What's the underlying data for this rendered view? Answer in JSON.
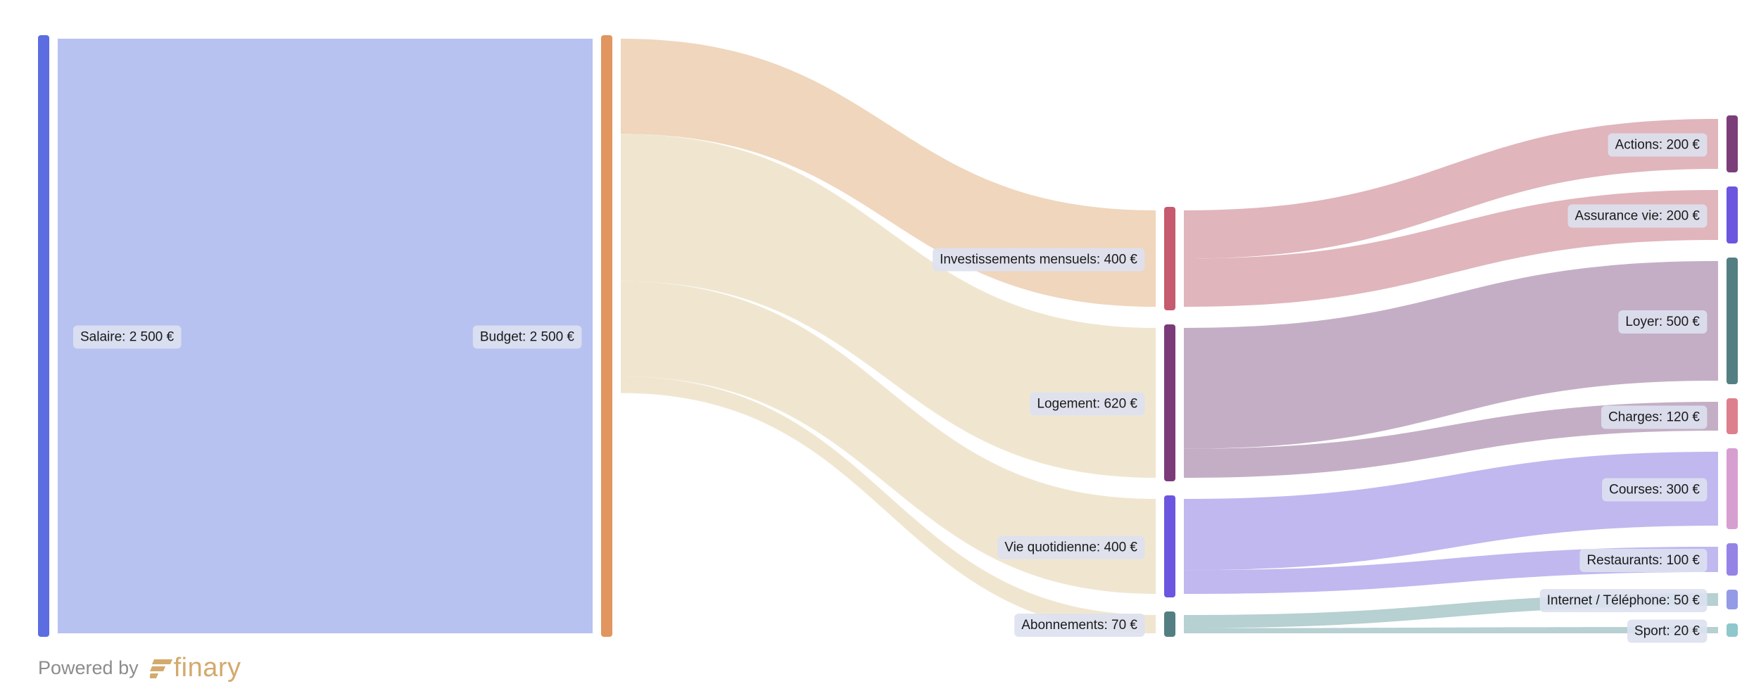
{
  "colors": {
    "salaire": "#5b6de0",
    "budget": "#e0965e",
    "invest": "#c65a6e",
    "logement": "#7b3b78",
    "quotidien": "#6c56df",
    "abonnements": "#537f82",
    "actions": "#7c3e79",
    "assurance": "#6c56df",
    "loyer": "#537f82",
    "charges": "#dd7f8d",
    "courses": "#d79ed0",
    "restaurants": "#9683e6",
    "internet": "#939ae6",
    "sport": "#8ec7cc",
    "link_salaire": "#b8c2f0",
    "link_invest_from_budget": "#efd6bc",
    "link_budget_other": "#f0e6d0",
    "link_invest": "#e0b5bb",
    "link_logement": "#c4aec5",
    "link_quotidien": "#c0b8ef",
    "link_abonnements": "#b7d0d2",
    "label_bg": "#dde1f0",
    "brand": "#d3aa6d"
  },
  "chart_data": {
    "type": "sankey",
    "unit": "€",
    "nodes": [
      {
        "id": "salaire",
        "label": "Salaire: 2 500 €",
        "value": 2500
      },
      {
        "id": "budget",
        "label": "Budget: 2 500 €",
        "value": 2500
      },
      {
        "id": "invest",
        "label": "Investissements mensuels: 400 €",
        "value": 400
      },
      {
        "id": "logement",
        "label": "Logement: 620 €",
        "value": 620
      },
      {
        "id": "quotidien",
        "label": "Vie quotidienne: 400 €",
        "value": 400
      },
      {
        "id": "abonnements",
        "label": "Abonnements: 70 €",
        "value": 70
      },
      {
        "id": "actions",
        "label": "Actions: 200 €",
        "value": 200
      },
      {
        "id": "assurance",
        "label": "Assurance vie: 200 €",
        "value": 200
      },
      {
        "id": "loyer",
        "label": "Loyer: 500 €",
        "value": 500
      },
      {
        "id": "charges",
        "label": "Charges: 120 €",
        "value": 120
      },
      {
        "id": "courses",
        "label": "Courses: 300 €",
        "value": 300
      },
      {
        "id": "restaurants",
        "label": "Restaurants: 100 €",
        "value": 100
      },
      {
        "id": "internet",
        "label": "Internet / Téléphone: 50 €",
        "value": 50
      },
      {
        "id": "sport",
        "label": "Sport: 20 €",
        "value": 20
      }
    ],
    "links": [
      {
        "source": "salaire",
        "target": "budget",
        "value": 2500
      },
      {
        "source": "budget",
        "target": "invest",
        "value": 400
      },
      {
        "source": "budget",
        "target": "logement",
        "value": 620
      },
      {
        "source": "budget",
        "target": "quotidien",
        "value": 400
      },
      {
        "source": "budget",
        "target": "abonnements",
        "value": 70
      },
      {
        "source": "invest",
        "target": "actions",
        "value": 200
      },
      {
        "source": "invest",
        "target": "assurance",
        "value": 200
      },
      {
        "source": "logement",
        "target": "loyer",
        "value": 500
      },
      {
        "source": "logement",
        "target": "charges",
        "value": 120
      },
      {
        "source": "quotidien",
        "target": "courses",
        "value": 300
      },
      {
        "source": "quotidien",
        "target": "restaurants",
        "value": 100
      },
      {
        "source": "abonnements",
        "target": "internet",
        "value": 50
      },
      {
        "source": "abonnements",
        "target": "sport",
        "value": 20
      }
    ]
  },
  "footer": {
    "powered_by": "Powered by",
    "brand": "finary",
    "brand_logo_icon": "finary-logo-icon"
  }
}
